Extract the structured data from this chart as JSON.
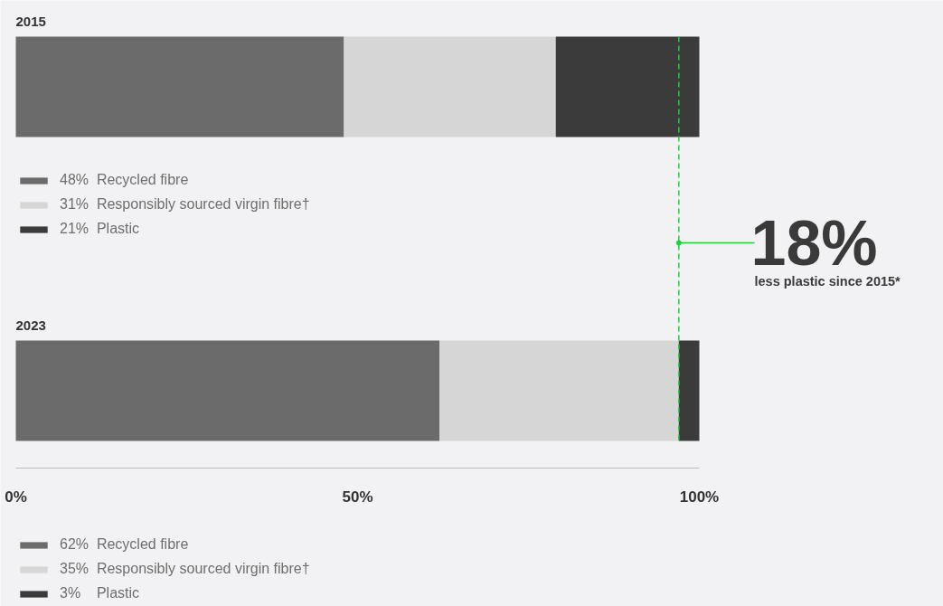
{
  "chart_data": {
    "type": "bar",
    "orientation": "horizontal",
    "stacked": true,
    "categories": [
      "2015",
      "2023"
    ],
    "series": [
      {
        "name": "48%  Recycled fibre",
        "color": "#6b6b6b",
        "values": [
          48,
          null
        ]
      },
      {
        "name": "31%  Responsibly sourced virgin fibre†",
        "color": "#d6d6d6",
        "values": [
          31,
          null
        ]
      },
      {
        "name": "21%  Plastic",
        "color": "#3b3b3b",
        "values": [
          21,
          null
        ]
      },
      {
        "name": "62%  Recycled fibre",
        "color": "#6b6b6b",
        "values": [
          null,
          62
        ]
      },
      {
        "name": "35%  Responsibly sourced virgin fibre†",
        "color": "#d6d6d6",
        "values": [
          null,
          35
        ]
      },
      {
        "name": "3%    Plastic",
        "color": "#3b3b3b",
        "values": [
          null,
          3
        ]
      }
    ],
    "xlim": [
      0,
      100
    ],
    "xticks": [
      {
        "value": 0,
        "label": "0%"
      },
      {
        "value": 50,
        "label": "50%"
      },
      {
        "value": 100,
        "label": "100%"
      }
    ],
    "ref_lines": [
      {
        "axis": "x",
        "value": 97,
        "label": null,
        "color": "#22cc44",
        "line_style": "dashed"
      }
    ],
    "annotations": [
      "18%",
      "less plastic since 2015*"
    ],
    "legend": "left"
  }
}
